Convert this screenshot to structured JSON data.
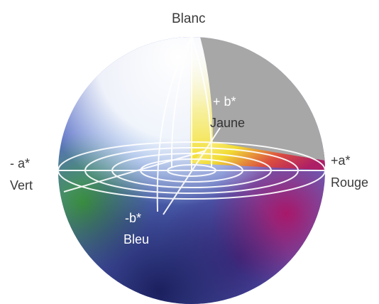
{
  "labels": {
    "top": "Blanc",
    "b_plus": "+ b*",
    "b_plus_name": "Jaune",
    "a_minus": "- a*",
    "a_minus_name": "Vert",
    "a_plus": "+a*",
    "a_plus_name": "Rouge",
    "b_minus": "-b*",
    "b_minus_name": "Bleu"
  },
  "colors": {
    "white": "#ffffff",
    "yellow": "#f2e23a",
    "red_magenta": "#a51a6e",
    "green": "#3f9f3c",
    "blue": "#3b57b8",
    "navy": "#242a78",
    "cutaway_gray": "#a7a7a7"
  }
}
